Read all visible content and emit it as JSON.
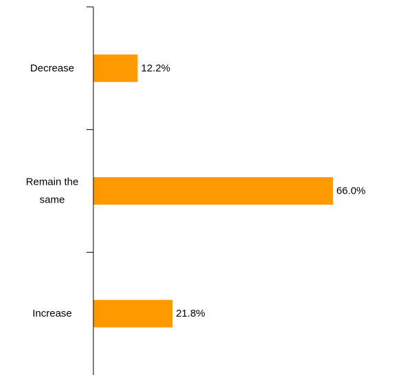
{
  "chart_data": {
    "type": "bar",
    "orientation": "horizontal",
    "categories": [
      "Decrease",
      "Remain the same",
      "Increase"
    ],
    "category_label_lines": [
      [
        "Decrease"
      ],
      [
        "Remain the",
        "same"
      ],
      [
        "Increase"
      ]
    ],
    "values": [
      12.2,
      66.0,
      21.8
    ],
    "value_labels": [
      "12.2%",
      "66.0%",
      "21.8%"
    ],
    "unit": "%",
    "xlim": [
      0,
      70
    ],
    "bar_color": "#FF9900",
    "axis_color": "#000000",
    "grid": false,
    "legend": "none"
  }
}
